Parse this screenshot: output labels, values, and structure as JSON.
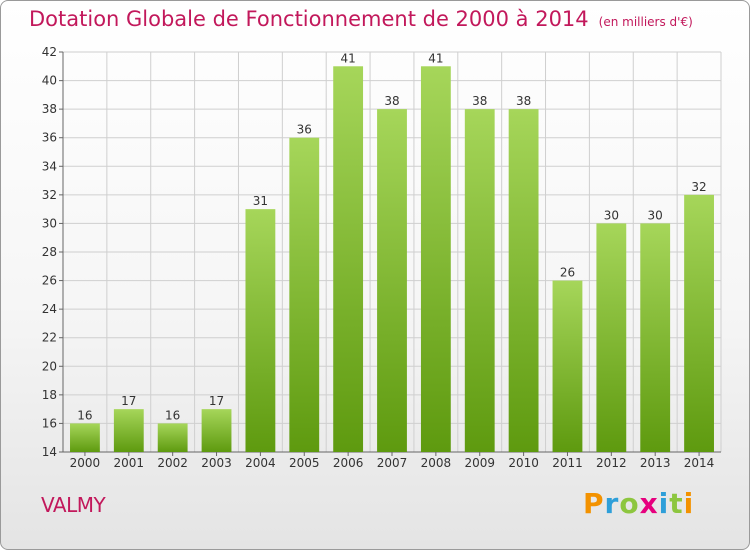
{
  "title": "Dotation Globale de Fonctionnement de 2000 à 2014",
  "subtitle": "(en milliers d'€)",
  "commune": "VALMY",
  "logo": {
    "letters": [
      "P",
      "r",
      "o",
      "x",
      "i",
      "t",
      "i"
    ],
    "colors": [
      "#f39200",
      "#2e9fd9",
      "#8dc63f",
      "#e6007e",
      "#2e9fd9",
      "#8dc63f",
      "#f39200"
    ]
  },
  "colors": {
    "title": "#c2185b",
    "bar_top": "#a6d65a",
    "bar_bottom": "#5e9a0f",
    "grid": "#cfcfcf"
  },
  "chart_data": {
    "type": "bar",
    "title": "Dotation Globale de Fonctionnement de 2000 à 2014",
    "subtitle": "(en milliers d'€)",
    "xlabel": "",
    "ylabel": "",
    "categories": [
      "2000",
      "2001",
      "2002",
      "2003",
      "2004",
      "2005",
      "2006",
      "2007",
      "2008",
      "2009",
      "2010",
      "2011",
      "2012",
      "2013",
      "2014"
    ],
    "values": [
      16,
      17,
      16,
      17,
      31,
      36,
      41,
      38,
      41,
      38,
      38,
      26,
      30,
      30,
      32
    ],
    "ylim": [
      14,
      42
    ],
    "yticks": [
      14,
      16,
      18,
      20,
      22,
      24,
      26,
      28,
      30,
      32,
      34,
      36,
      38,
      40,
      42
    ],
    "grid": true,
    "data_labels": true
  }
}
